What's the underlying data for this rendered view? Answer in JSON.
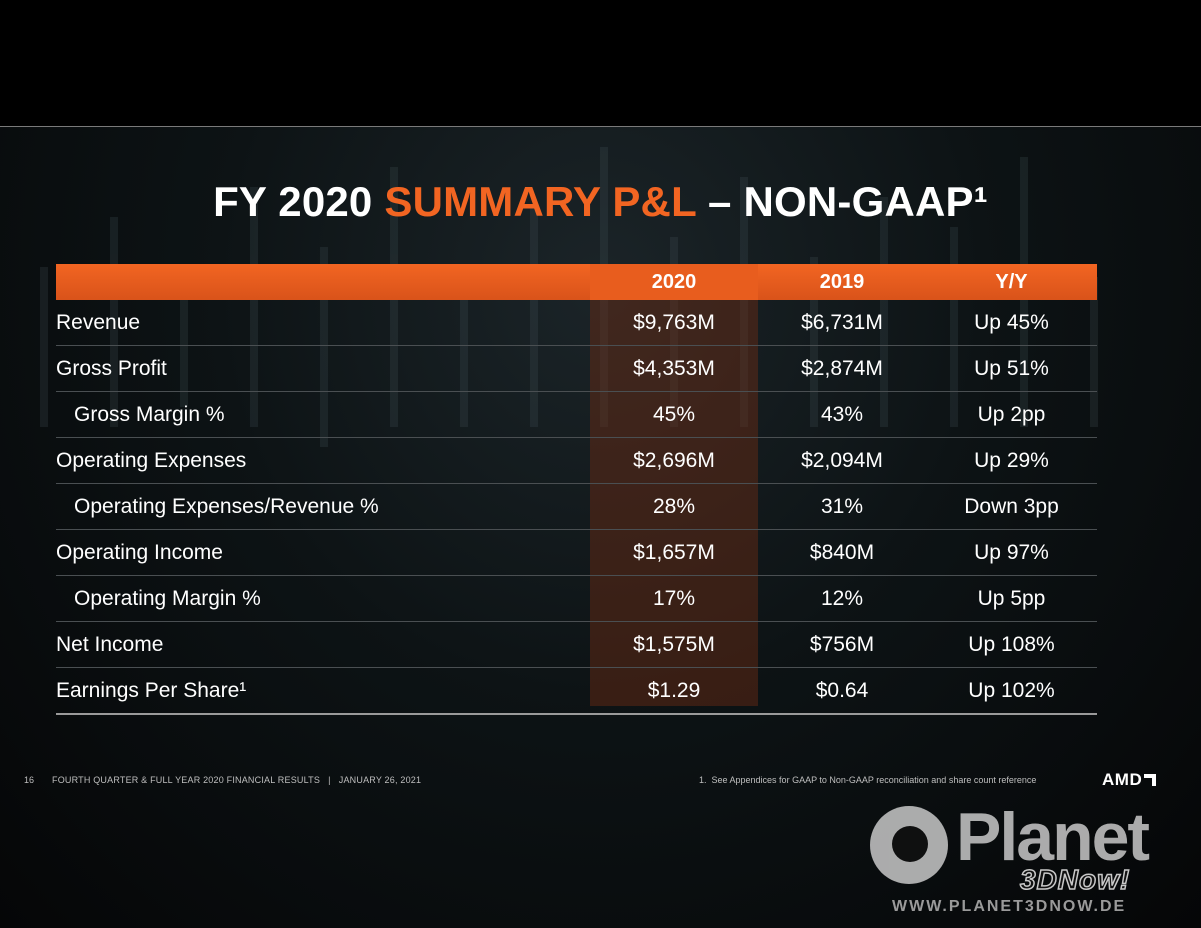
{
  "title": {
    "prefix": "FY 2020 ",
    "accent": "SUMMARY P&L",
    "suffix": " – NON-GAAP¹"
  },
  "table": {
    "columns": [
      "2020",
      "2019",
      "Y/Y"
    ],
    "rows": [
      {
        "label": "Revenue",
        "indent": false,
        "v2020": "$9,763M",
        "v2019": "$6,731M",
        "yy": "Up 45%"
      },
      {
        "label": "Gross Profit",
        "indent": false,
        "v2020": "$4,353M",
        "v2019": "$2,874M",
        "yy": "Up 51%"
      },
      {
        "label": "Gross Margin %",
        "indent": true,
        "v2020": "45%",
        "v2019": "43%",
        "yy": "Up 2pp"
      },
      {
        "label": "Operating Expenses",
        "indent": false,
        "v2020": "$2,696M",
        "v2019": "$2,094M",
        "yy": "Up 29%"
      },
      {
        "label": "Operating Expenses/Revenue %",
        "indent": true,
        "v2020": "28%",
        "v2019": "31%",
        "yy": "Down 3pp"
      },
      {
        "label": "Operating Income",
        "indent": false,
        "v2020": "$1,657M",
        "v2019": "$840M",
        "yy": "Up 97%"
      },
      {
        "label": "Operating Margin %",
        "indent": true,
        "v2020": "17%",
        "v2019": "12%",
        "yy": "Up 5pp"
      },
      {
        "label": "Net Income",
        "indent": false,
        "v2020": "$1,575M",
        "v2019": "$756M",
        "yy": "Up 108%"
      },
      {
        "label": "Earnings Per Share¹",
        "indent": false,
        "v2020": "$1.29",
        "v2019": "$0.64",
        "yy": "Up 102%"
      }
    ]
  },
  "footer": {
    "page_number": "16",
    "text": "FOURTH QUARTER & FULL YEAR 2020 FINANCIAL RESULTS   |   JANUARY 26, 2021",
    "footnote": "1.  See Appendices for GAAP to Non-GAAP reconciliation and share count reference",
    "logo": "AMD"
  },
  "watermark": {
    "brand": "Planet",
    "sub": "3DNow!",
    "url": "WWW.PLANET3DNOW.DE"
  },
  "colors": {
    "accent": "#f26522",
    "background": "#0d1315"
  }
}
